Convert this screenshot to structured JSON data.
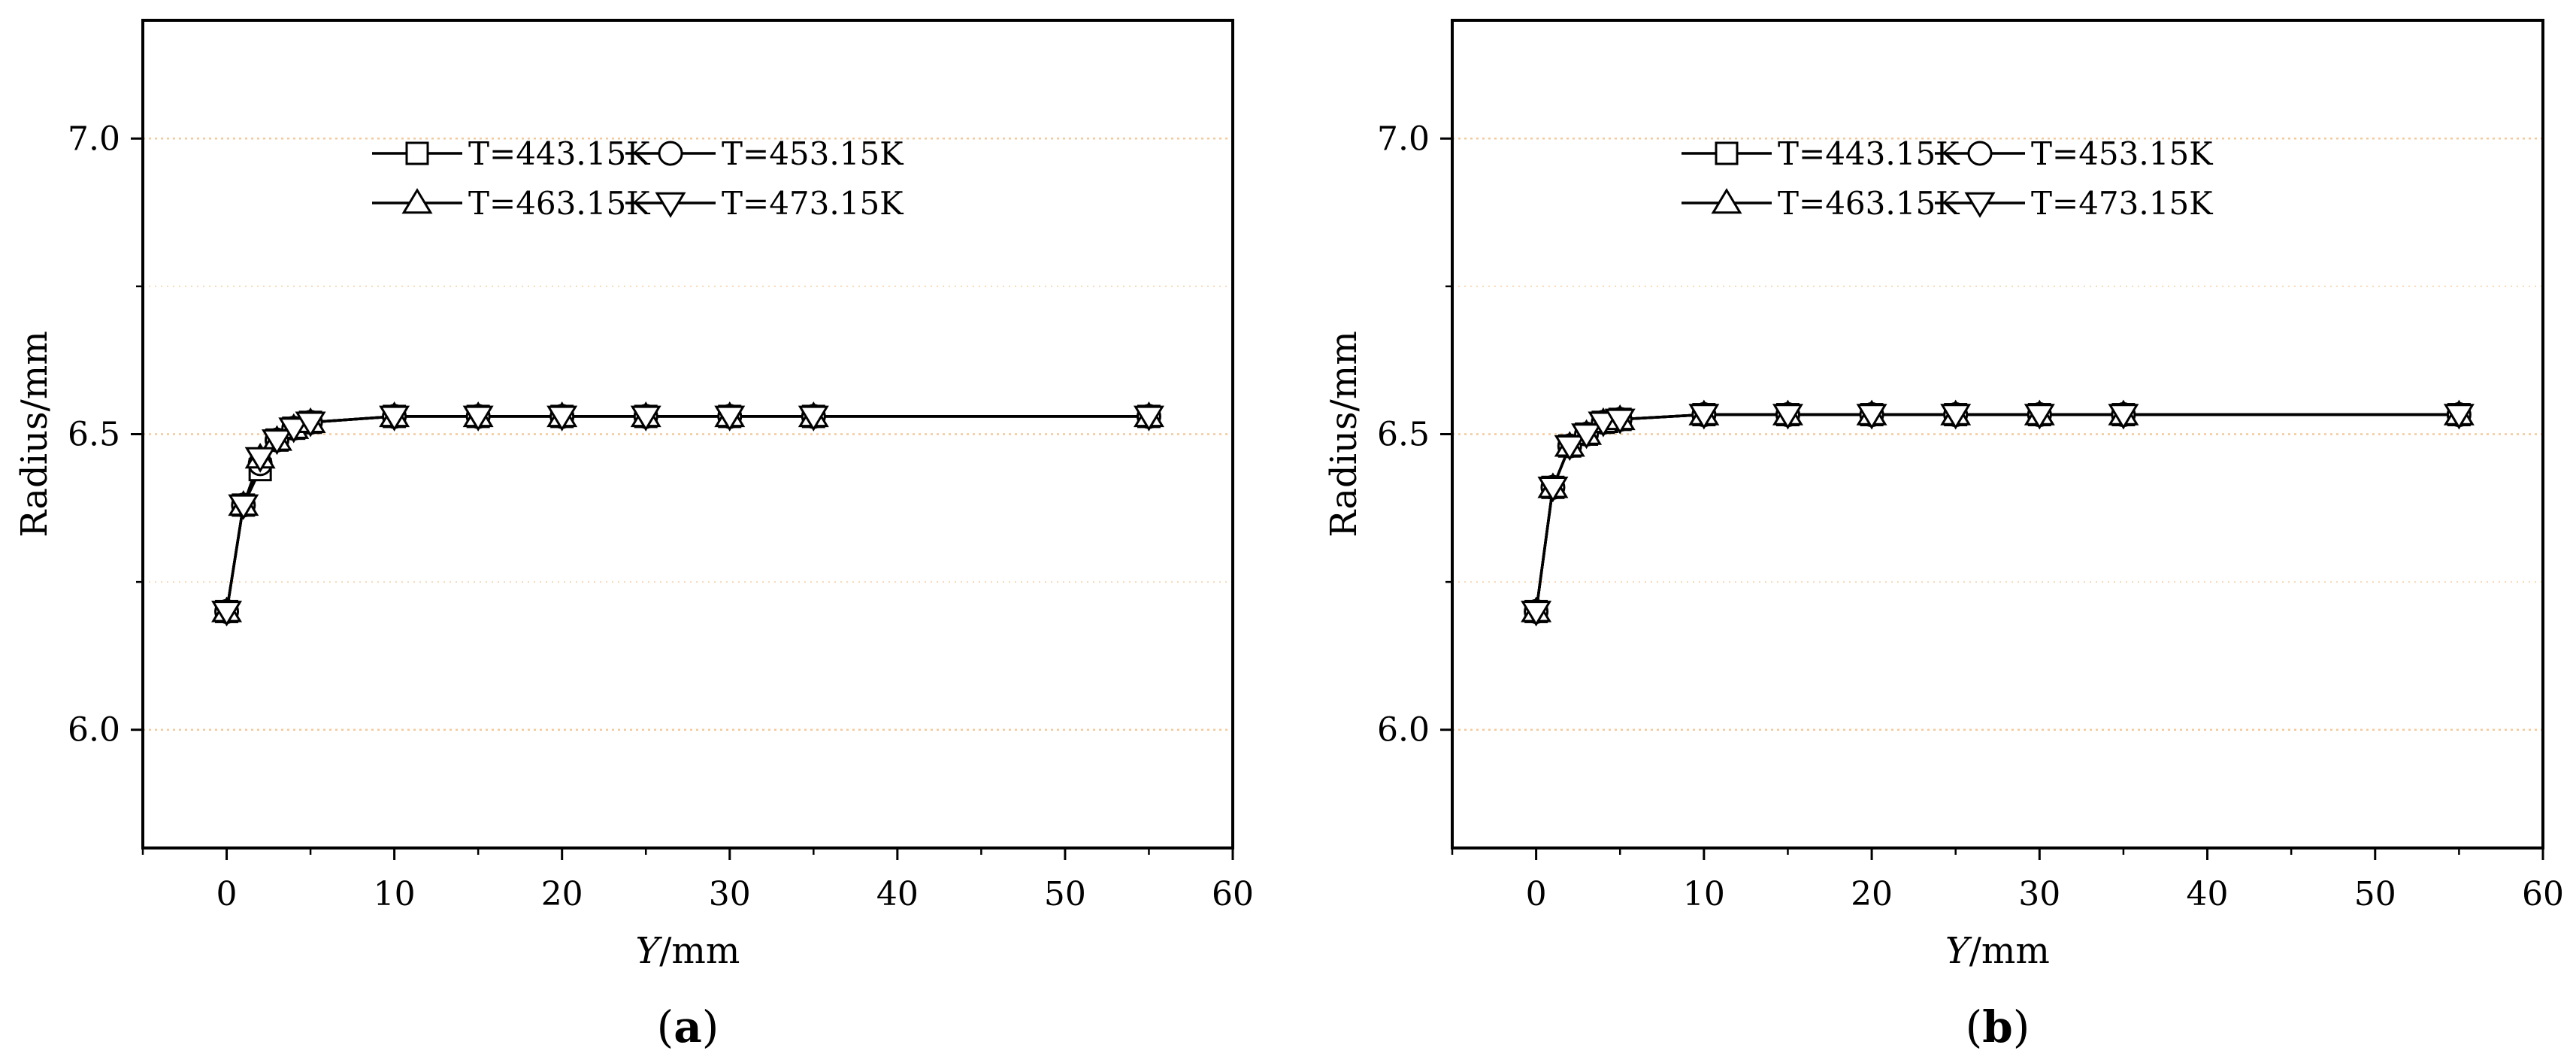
{
  "colors": {
    "grid": "#f3c99a",
    "axis": "#000000",
    "series_line": "#000000",
    "marker_fill": "#ffffff"
  },
  "chart_data": [
    {
      "type": "line",
      "panel_label": "(a)",
      "panel_letter": "a",
      "xlabel_var": "Y",
      "xlabel_unit": "/mm",
      "ylabel": "Radius/mm",
      "xlim": [
        -5,
        60
      ],
      "ylim": [
        5.8,
        7.2
      ],
      "x_ticks": [
        0,
        10,
        20,
        30,
        40,
        50,
        60
      ],
      "x_tick_labels": [
        "0",
        "10",
        "20",
        "30",
        "40",
        "50",
        "60"
      ],
      "y_ticks": [
        6.0,
        6.5,
        7.0
      ],
      "y_tick_labels": [
        "6.0",
        "6.5",
        "7.0"
      ],
      "grid": "dotted horizontal at major y ticks",
      "legend_position": "top-center",
      "series": [
        {
          "name": "T=443.15K",
          "marker": "square",
          "x": [
            0,
            1,
            2,
            3,
            4,
            5,
            10,
            15,
            20,
            25,
            30,
            35,
            55
          ],
          "y": [
            6.2,
            6.38,
            6.44,
            6.49,
            6.51,
            6.52,
            6.53,
            6.53,
            6.53,
            6.53,
            6.53,
            6.53,
            6.53
          ]
        },
        {
          "name": "T=453.15K",
          "marker": "circle",
          "x": [
            0,
            1,
            2,
            3,
            4,
            5,
            10,
            15,
            20,
            25,
            30,
            35,
            55
          ],
          "y": [
            6.2,
            6.38,
            6.45,
            6.49,
            6.51,
            6.52,
            6.53,
            6.53,
            6.53,
            6.53,
            6.53,
            6.53,
            6.53
          ]
        },
        {
          "name": "T=463.15K",
          "marker": "triangle-up",
          "x": [
            0,
            1,
            2,
            3,
            4,
            5,
            10,
            15,
            20,
            25,
            30,
            35,
            55
          ],
          "y": [
            6.2,
            6.38,
            6.46,
            6.49,
            6.51,
            6.52,
            6.53,
            6.53,
            6.53,
            6.53,
            6.53,
            6.53,
            6.53
          ]
        },
        {
          "name": "T=473.15K",
          "marker": "triangle-down",
          "x": [
            0,
            1,
            2,
            3,
            4,
            5,
            10,
            15,
            20,
            25,
            30,
            35,
            55
          ],
          "y": [
            6.2,
            6.38,
            6.46,
            6.49,
            6.51,
            6.52,
            6.53,
            6.53,
            6.53,
            6.53,
            6.53,
            6.53,
            6.53
          ]
        }
      ]
    },
    {
      "type": "line",
      "panel_label": "(b)",
      "panel_letter": "b",
      "xlabel_var": "Y",
      "xlabel_unit": "/mm",
      "ylabel": "Radius/mm",
      "xlim": [
        -5,
        60
      ],
      "ylim": [
        5.8,
        7.2
      ],
      "x_ticks": [
        0,
        10,
        20,
        30,
        40,
        50,
        60
      ],
      "x_tick_labels": [
        "0",
        "10",
        "20",
        "30",
        "40",
        "50",
        "60"
      ],
      "y_ticks": [
        6.0,
        6.5,
        7.0
      ],
      "y_tick_labels": [
        "6.0",
        "6.5",
        "7.0"
      ],
      "grid": "dotted horizontal at major y ticks",
      "legend_position": "top-center",
      "series": [
        {
          "name": "T=443.15K",
          "marker": "square",
          "x": [
            0,
            1,
            2,
            3,
            4,
            5,
            10,
            15,
            20,
            25,
            30,
            35,
            55
          ],
          "y": [
            6.2,
            6.41,
            6.48,
            6.5,
            6.52,
            6.525,
            6.533,
            6.533,
            6.533,
            6.533,
            6.533,
            6.533,
            6.533
          ]
        },
        {
          "name": "T=453.15K",
          "marker": "circle",
          "x": [
            0,
            1,
            2,
            3,
            4,
            5,
            10,
            15,
            20,
            25,
            30,
            35,
            55
          ],
          "y": [
            6.2,
            6.41,
            6.48,
            6.5,
            6.52,
            6.525,
            6.533,
            6.533,
            6.533,
            6.533,
            6.533,
            6.533,
            6.533
          ]
        },
        {
          "name": "T=463.15K",
          "marker": "triangle-up",
          "x": [
            0,
            1,
            2,
            3,
            4,
            5,
            10,
            15,
            20,
            25,
            30,
            35,
            55
          ],
          "y": [
            6.2,
            6.41,
            6.48,
            6.5,
            6.52,
            6.525,
            6.533,
            6.533,
            6.533,
            6.533,
            6.533,
            6.533,
            6.533
          ]
        },
        {
          "name": "T=473.15K",
          "marker": "triangle-down",
          "x": [
            0,
            1,
            2,
            3,
            4,
            5,
            10,
            15,
            20,
            25,
            30,
            35,
            55
          ],
          "y": [
            6.2,
            6.41,
            6.48,
            6.5,
            6.52,
            6.525,
            6.533,
            6.533,
            6.533,
            6.533,
            6.533,
            6.533,
            6.533
          ]
        }
      ]
    }
  ]
}
